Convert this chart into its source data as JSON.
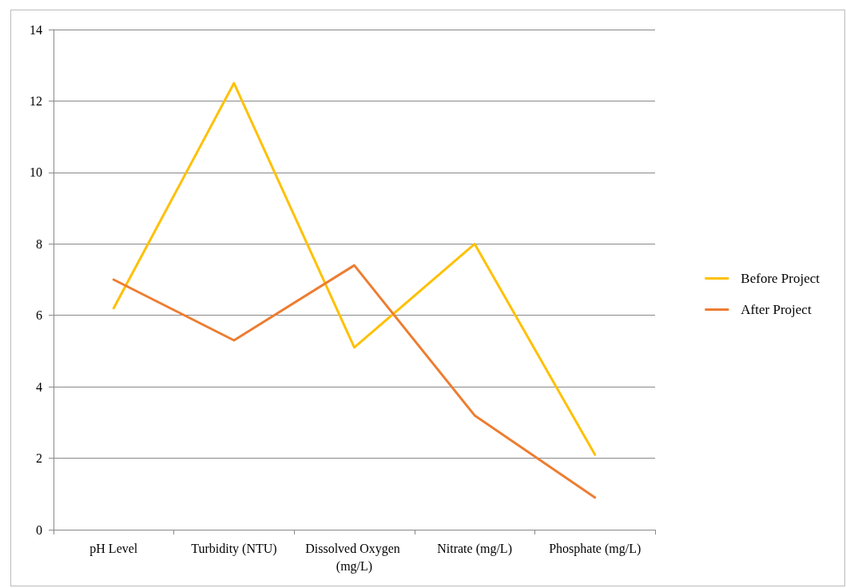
{
  "chart_data": {
    "type": "line",
    "categories": [
      "pH Level",
      "Turbidity (NTU)",
      "Dissolved Oxygen (mg/L)",
      "Nitrate (mg/L)",
      "Phosphate (mg/L)"
    ],
    "series": [
      {
        "name": "Before Project",
        "color": "#ffc000",
        "values": [
          6.2,
          12.5,
          5.1,
          8.0,
          2.1
        ]
      },
      {
        "name": "After Project",
        "color": "#ed7d31",
        "values": [
          7.0,
          5.3,
          7.4,
          3.2,
          0.9
        ]
      }
    ],
    "ylim": [
      0,
      14
    ],
    "yticks": [
      0,
      2,
      4,
      6,
      8,
      10,
      12,
      14
    ],
    "grid": "y",
    "legend": "right",
    "marker": "none",
    "line_style": "solid"
  }
}
